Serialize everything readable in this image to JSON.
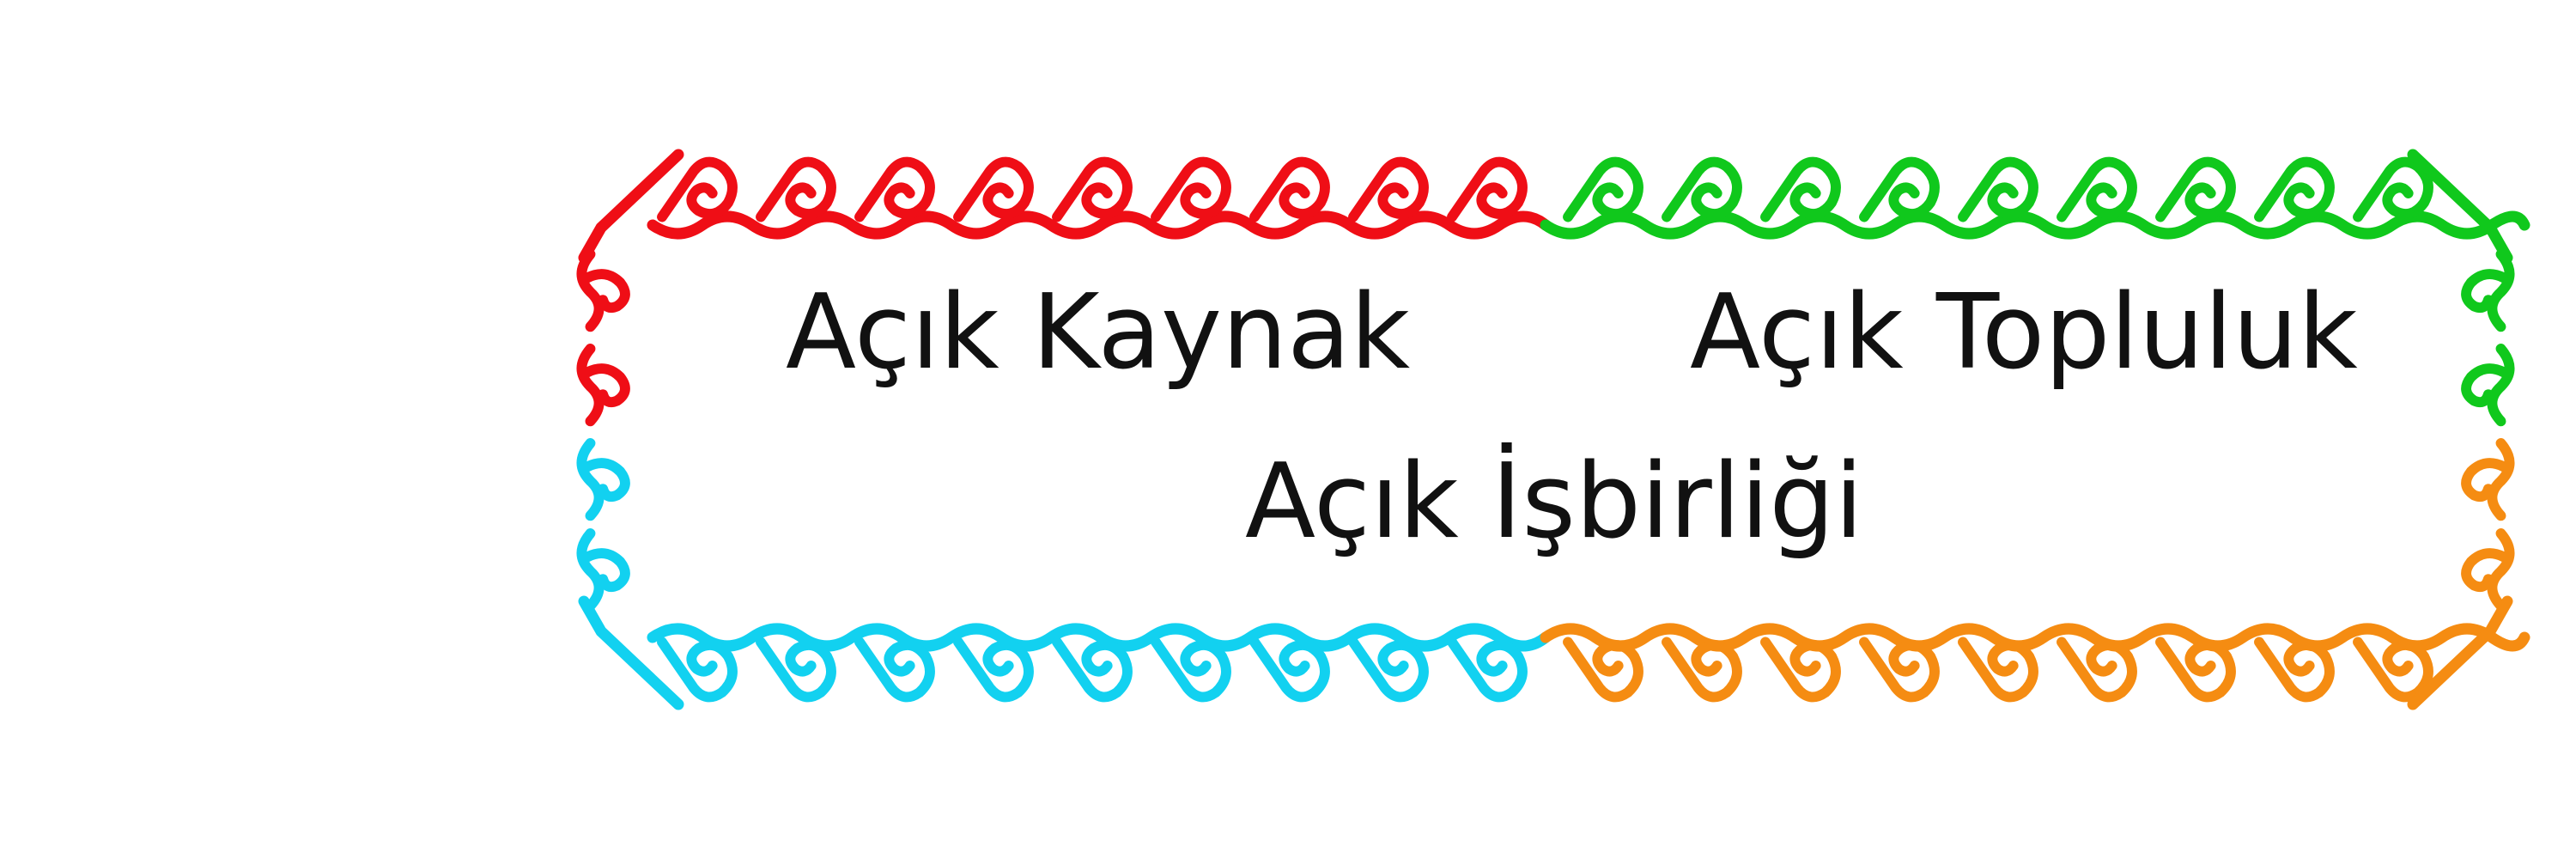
{
  "banner": {
    "texts": {
      "left": "Açık Kaynak",
      "right": "Açık Topluluk",
      "bottom": "Açık İşbirliği"
    },
    "segment_colors": {
      "top_left": "#ef0e16",
      "top_right": "#10c81c",
      "bottom_left": "#12d1f0",
      "bottom_right": "#f58c12"
    },
    "motif": "spiral-wave-border"
  }
}
